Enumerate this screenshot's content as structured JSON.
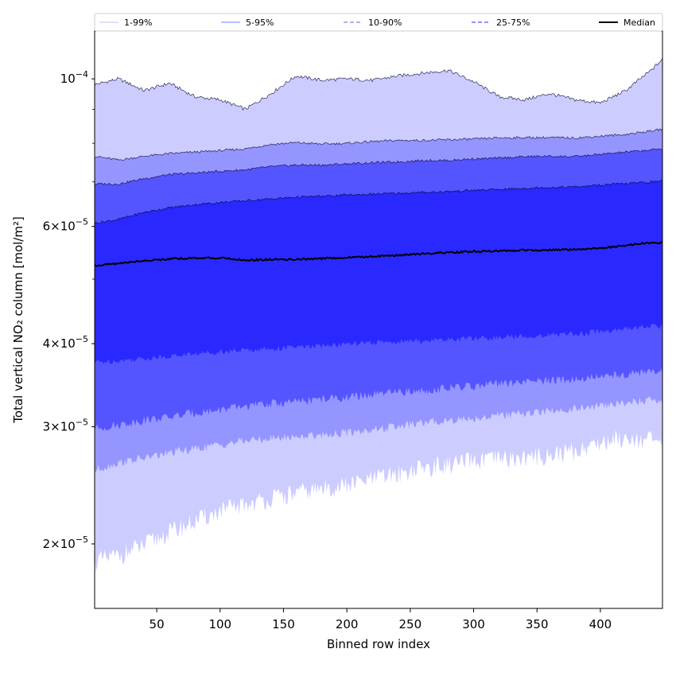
{
  "chart_data": {
    "type": "area",
    "xlabel": "Binned row index",
    "ylabel": "Total vertical NO₂ column [mol/m²]",
    "yscale": "log",
    "xlim": [
      1,
      449
    ],
    "ylim": [
      1.6e-05,
      0.000118
    ],
    "xticks": [
      50,
      100,
      150,
      200,
      250,
      300,
      350,
      400
    ],
    "yticks": [
      {
        "value": 2e-05,
        "mantissa": "2",
        "exponent": "−5"
      },
      {
        "value": 3e-05,
        "mantissa": "3",
        "exponent": "−5"
      },
      {
        "value": 4e-05,
        "mantissa": "4",
        "exponent": "−5"
      },
      {
        "value": 6e-05,
        "mantissa": "6",
        "exponent": "−5"
      },
      {
        "value": 0.0001,
        "mantissa": "",
        "exponent": "−4"
      }
    ],
    "x": [
      1,
      20,
      40,
      60,
      80,
      100,
      120,
      140,
      160,
      180,
      200,
      220,
      240,
      260,
      280,
      300,
      320,
      340,
      360,
      380,
      400,
      420,
      440,
      449
    ],
    "bands": [
      {
        "name": "1-99%",
        "color": "#ccccff",
        "lower": [
          1.88e-05,
          1.92e-05,
          1.99e-05,
          2.08e-05,
          2.16e-05,
          2.24e-05,
          2.29e-05,
          2.34e-05,
          2.38e-05,
          2.42e-05,
          2.45e-05,
          2.5e-05,
          2.55e-05,
          2.6e-05,
          2.63e-05,
          2.66e-05,
          2.68e-05,
          2.69e-05,
          2.72e-05,
          2.76e-05,
          2.84e-05,
          2.9e-05,
          2.86e-05,
          2.82e-05
        ],
        "upper": [
          9.8e-05,
          0.0001,
          9.6e-05,
          9.85e-05,
          9.4e-05,
          9.3e-05,
          9e-05,
          9.5e-05,
          0.000101,
          9.95e-05,
          0.0001,
          9.95e-05,
          0.000101,
          0.000102,
          0.000103,
          9.9e-05,
          9.4e-05,
          9.3e-05,
          9.5e-05,
          9.3e-05,
          9.2e-05,
          9.6e-05,
          0.000103,
          0.000107
        ]
      },
      {
        "name": "5-95%",
        "color": "#9595ff",
        "lower": [
          2.58e-05,
          2.65e-05,
          2.69e-05,
          2.74e-05,
          2.78e-05,
          2.82e-05,
          2.86e-05,
          2.88e-05,
          2.9e-05,
          2.92e-05,
          2.94e-05,
          2.97e-05,
          3e-05,
          3.04e-05,
          3.07e-05,
          3.09e-05,
          3.12e-05,
          3.14e-05,
          3.17e-05,
          3.19e-05,
          3.22e-05,
          3.26e-05,
          3.29e-05,
          3.28e-05
        ],
        "upper": [
          7.65e-05,
          7.55e-05,
          7.65e-05,
          7.72e-05,
          7.76e-05,
          7.8e-05,
          7.85e-05,
          7.97e-05,
          8.02e-05,
          7.98e-05,
          8e-05,
          8.05e-05,
          8.08e-05,
          8.08e-05,
          8.1e-05,
          8.12e-05,
          8.15e-05,
          8.16e-05,
          8.16e-05,
          8.15e-05,
          8.2e-05,
          8.25e-05,
          8.35e-05,
          8.4e-05
        ]
      },
      {
        "name": "10-90%",
        "color": "#5555ff",
        "lower": [
          2.98e-05,
          3.02e-05,
          3.07e-05,
          3.1e-05,
          3.15e-05,
          3.18e-05,
          3.22e-05,
          3.25e-05,
          3.27e-05,
          3.3e-05,
          3.32e-05,
          3.35e-05,
          3.38e-05,
          3.4e-05,
          3.43e-05,
          3.45e-05,
          3.48e-05,
          3.5e-05,
          3.52e-05,
          3.54e-05,
          3.57e-05,
          3.6e-05,
          3.63e-05,
          3.62e-05
        ],
        "upper": [
          6.95e-05,
          6.95e-05,
          7.08e-05,
          7.18e-05,
          7.22e-05,
          7.26e-05,
          7.3e-05,
          7.38e-05,
          7.42e-05,
          7.42e-05,
          7.45e-05,
          7.48e-05,
          7.5e-05,
          7.54e-05,
          7.54e-05,
          7.58e-05,
          7.6e-05,
          7.64e-05,
          7.65e-05,
          7.64e-05,
          7.7e-05,
          7.76e-05,
          7.82e-05,
          7.85e-05
        ]
      },
      {
        "name": "25-75%",
        "color": "#2929ff",
        "lower": [
          3.75e-05,
          3.77e-05,
          3.8e-05,
          3.83e-05,
          3.86e-05,
          3.89e-05,
          3.91e-05,
          3.93e-05,
          3.95e-05,
          3.97e-05,
          3.99e-05,
          4.01e-05,
          4.03e-05,
          4.04e-05,
          4.06e-05,
          4.07e-05,
          4.09e-05,
          4.1e-05,
          4.12e-05,
          4.14e-05,
          4.17e-05,
          4.21e-05,
          4.25e-05,
          4.24e-05
        ],
        "upper": [
          6.07e-05,
          6.15e-05,
          6.3e-05,
          6.4e-05,
          6.47e-05,
          6.52e-05,
          6.56e-05,
          6.6e-05,
          6.64e-05,
          6.66e-05,
          6.69e-05,
          6.71e-05,
          6.73e-05,
          6.75e-05,
          6.77e-05,
          6.8e-05,
          6.82e-05,
          6.85e-05,
          6.87e-05,
          6.88e-05,
          6.92e-05,
          6.96e-05,
          7e-05,
          7.02e-05
        ]
      }
    ],
    "median": {
      "name": "Median",
      "color": "#000000",
      "values": [
        5.24e-05,
        5.28e-05,
        5.33e-05,
        5.36e-05,
        5.38e-05,
        5.38e-05,
        5.34e-05,
        5.35e-05,
        5.35e-05,
        5.37e-05,
        5.39e-05,
        5.41e-05,
        5.43e-05,
        5.46e-05,
        5.48e-05,
        5.5e-05,
        5.51e-05,
        5.53e-05,
        5.53e-05,
        5.54e-05,
        5.56e-05,
        5.62e-05,
        5.67e-05,
        5.67e-05
      ]
    },
    "legend": {
      "placement": "top",
      "entries": [
        {
          "label": "1-99%",
          "color": "#ccccff",
          "style": "solid"
        },
        {
          "label": "5-95%",
          "color": "#9595ff",
          "style": "solid"
        },
        {
          "label": "10-90%",
          "color": "#8080ff",
          "style": "dashed"
        },
        {
          "label": "25-75%",
          "color": "#5555ff",
          "style": "dashed"
        },
        {
          "label": "Median",
          "color": "#000000",
          "style": "solid"
        }
      ]
    },
    "grid": false
  }
}
